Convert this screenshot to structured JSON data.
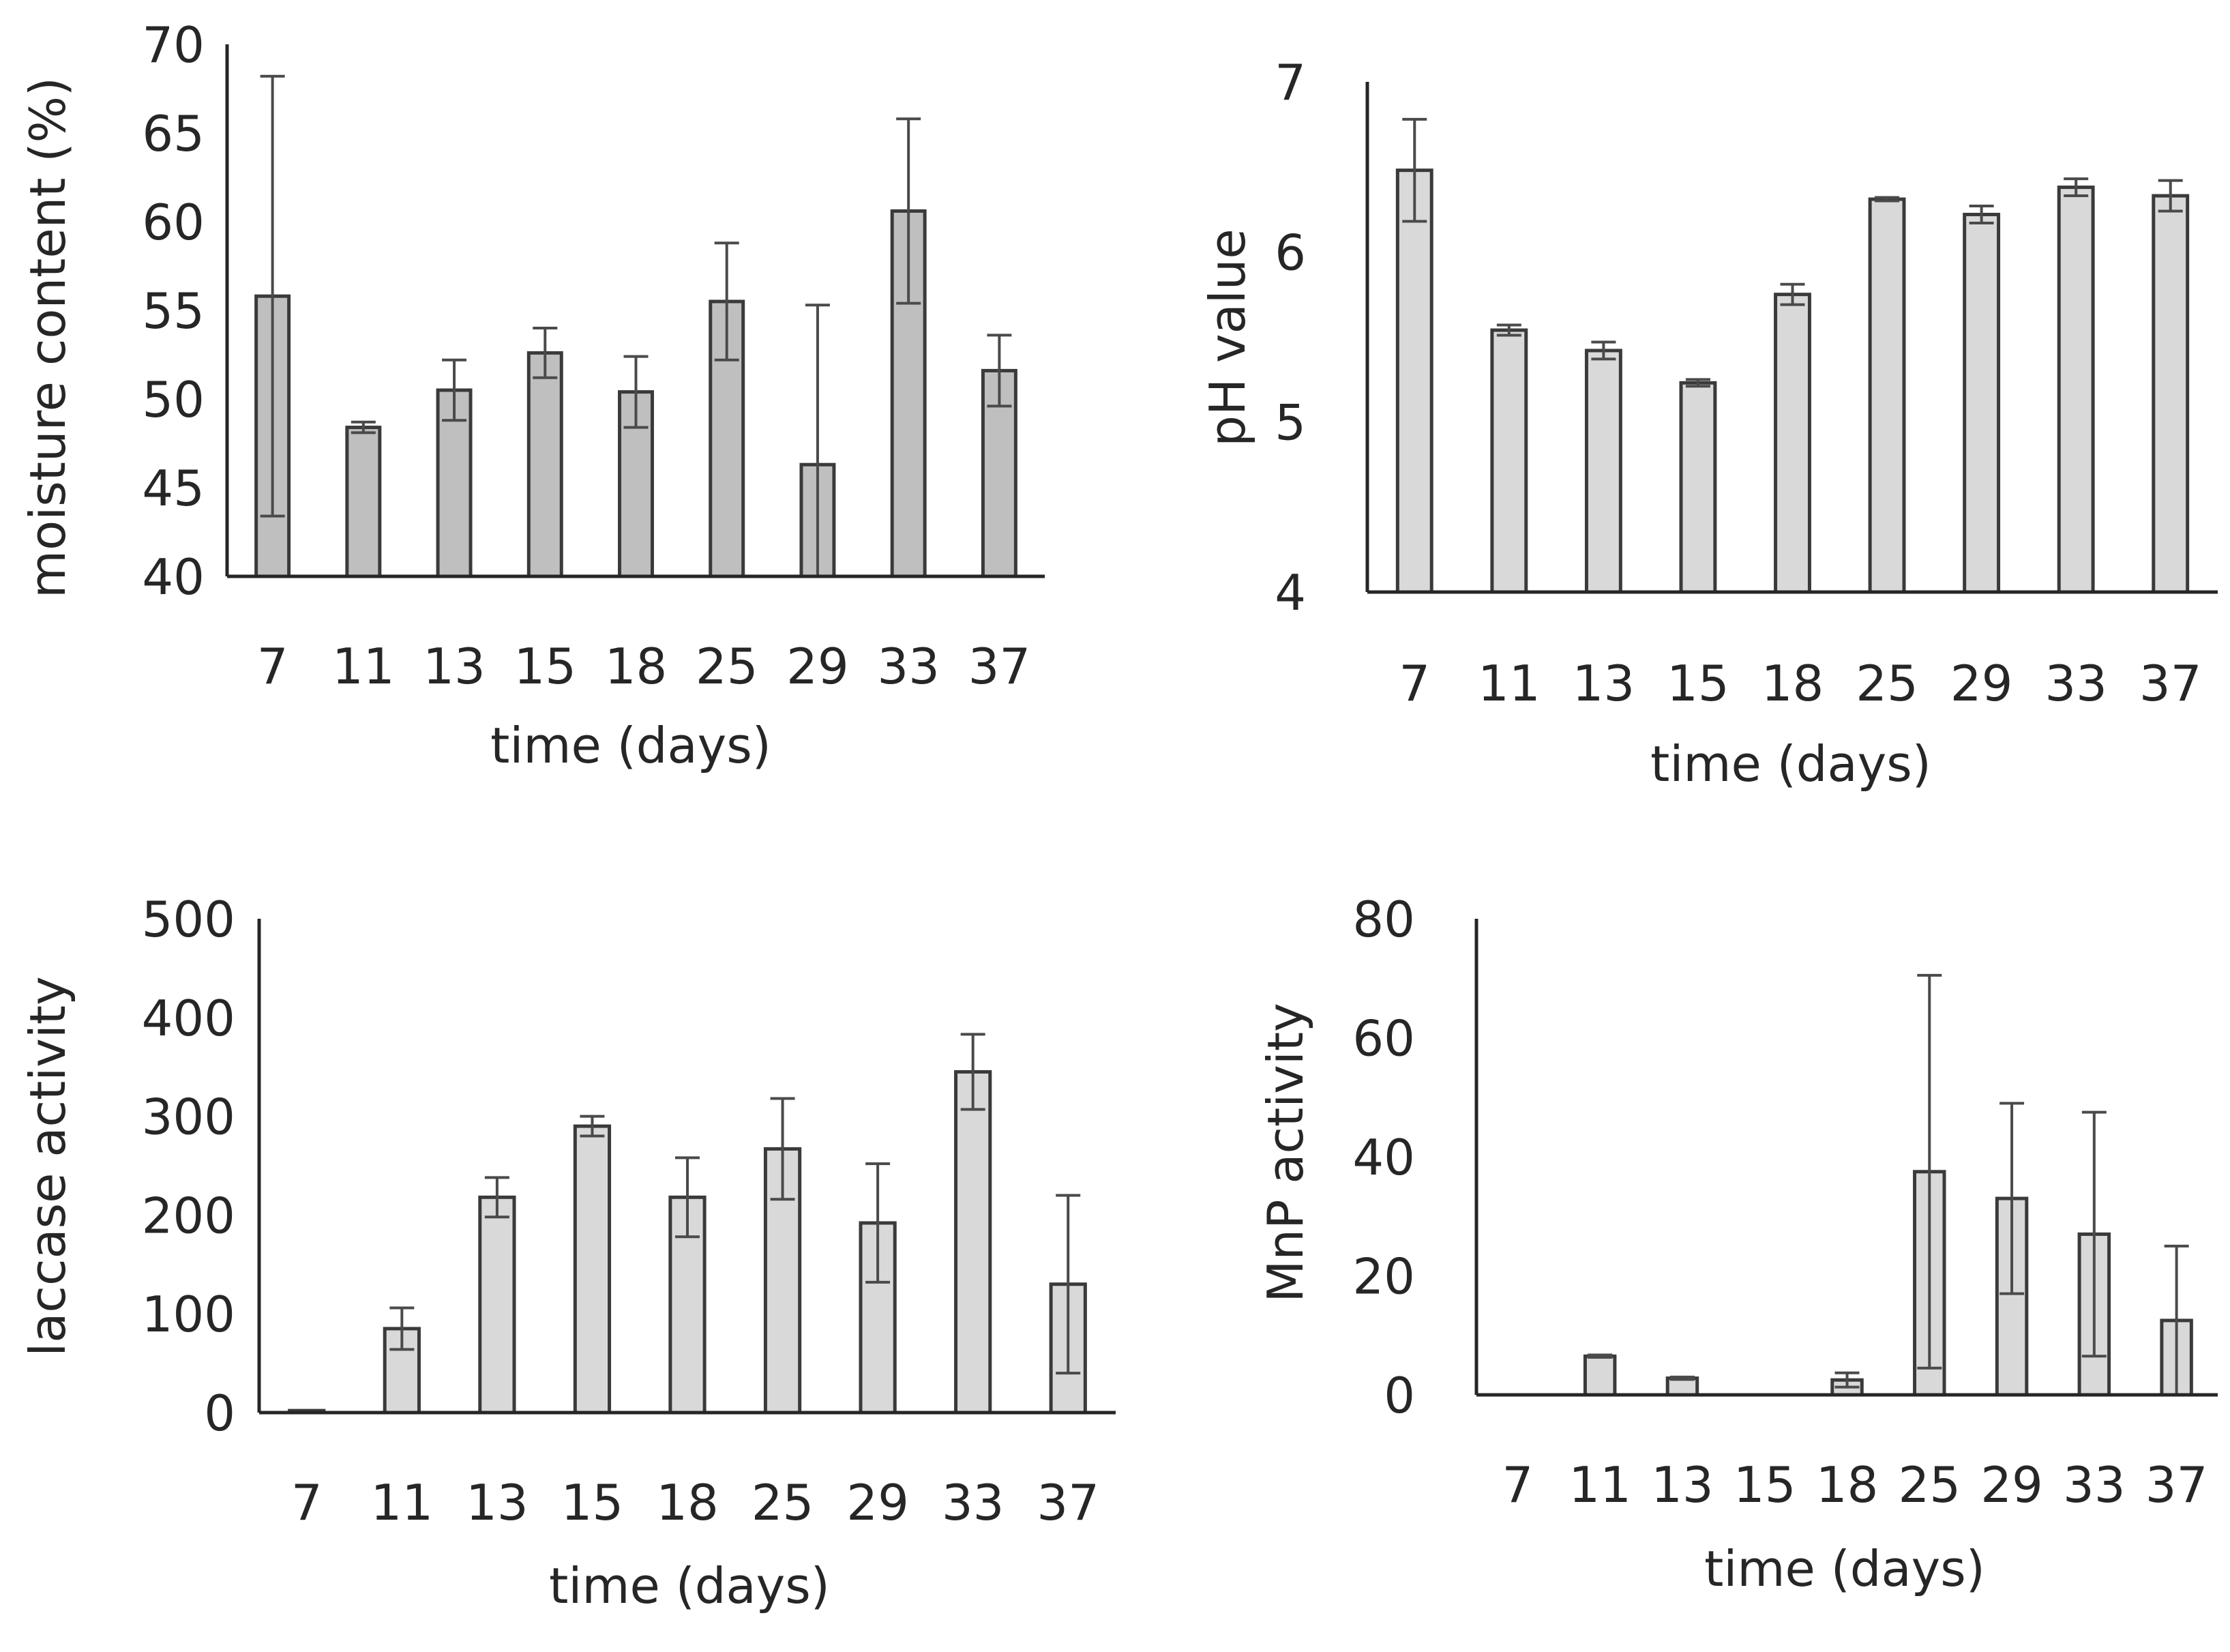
{
  "chart_data": [
    {
      "type": "bar",
      "title": "",
      "xlabel": "time (days)",
      "ylabel": "moisture content (%)",
      "categories": [
        "7",
        "11",
        "13",
        "15",
        "18",
        "25",
        "29",
        "33",
        "37"
      ],
      "values": [
        55.8,
        48.4,
        50.5,
        52.6,
        50.4,
        55.5,
        46.3,
        60.6,
        51.6
      ],
      "errors": [
        12.4,
        0.3,
        1.7,
        1.4,
        2.0,
        3.3,
        9.0,
        5.2,
        2.0
      ],
      "ylim": [
        40,
        70
      ],
      "yticks": [
        40,
        45,
        50,
        55,
        60,
        65,
        70
      ],
      "bar_color": "#bfbfbf"
    },
    {
      "type": "bar",
      "title": "",
      "xlabel": "time (days)",
      "ylabel": "pH value",
      "categories": [
        "7",
        "11",
        "13",
        "15",
        "18",
        "25",
        "29",
        "33",
        "37"
      ],
      "values": [
        6.48,
        5.54,
        5.42,
        5.23,
        5.75,
        6.31,
        6.22,
        6.38,
        6.33
      ],
      "errors": [
        0.3,
        0.03,
        0.05,
        0.02,
        0.06,
        0.01,
        0.05,
        0.05,
        0.09
      ],
      "ylim": [
        4,
        7
      ],
      "yticks": [
        4,
        5,
        6,
        7
      ],
      "bar_color": "#d9d9d9"
    },
    {
      "type": "bar",
      "title": "",
      "xlabel": "time (days)",
      "ylabel": "laccase activity",
      "categories": [
        "7",
        "11",
        "13",
        "15",
        "18",
        "25",
        "29",
        "33",
        "37"
      ],
      "values": [
        2,
        85,
        218,
        290,
        218,
        267,
        192,
        345,
        130
      ],
      "errors": [
        0,
        21,
        20,
        10,
        40,
        51,
        60,
        38,
        90
      ],
      "ylim": [
        0,
        500
      ],
      "yticks": [
        0,
        100,
        200,
        300,
        400,
        500
      ],
      "bar_color": "#d9d9d9"
    },
    {
      "type": "bar",
      "title": "",
      "xlabel": "time (days)",
      "ylabel": "MnP activity",
      "categories": [
        "7",
        "11",
        "13",
        "15",
        "18",
        "25",
        "29",
        "33",
        "37"
      ],
      "values": [
        0,
        6.5,
        2.8,
        0,
        2.5,
        37.5,
        33,
        27,
        12.5
      ],
      "errors": [
        0,
        0.2,
        0.2,
        0,
        1.2,
        33,
        16,
        20.5,
        12.5
      ],
      "ylim": [
        0,
        80
      ],
      "yticks": [
        0,
        20,
        40,
        60,
        80
      ],
      "bar_color": "#d9d9d9"
    }
  ]
}
